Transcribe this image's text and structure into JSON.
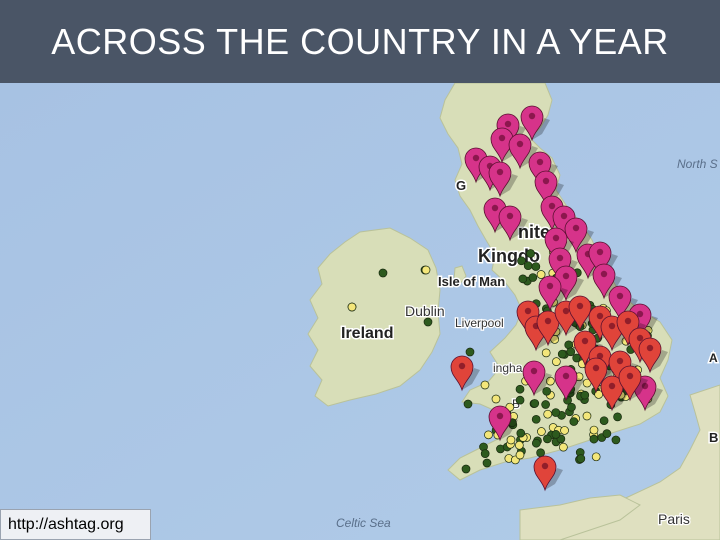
{
  "title": "ACROSS THE COUNTRY IN A YEAR",
  "source": "http://ashtag.org",
  "map": {
    "colors": {
      "sea": "#a9c4e4",
      "land": "#d9dfbc",
      "pin_magenta": "#d6338a",
      "pin_red": "#e0443a",
      "dot_green": "#2d5a1e",
      "dot_yellow": "#f3e67a"
    },
    "labels": {
      "north_sea": "North S",
      "united_kingdom_line1": "nite",
      "united_kingdom_line2": "Kingdo",
      "isle_of_man": "Isle of Man",
      "dublin": "Dublin",
      "ireland": "Ireland",
      "liverpool": "Liverpool",
      "birmingham": "ingha",
      "celtic_sea": "Celtic Sea",
      "paris": "Paris",
      "glasgow": "G",
      "b_label": "B",
      "a_label": "A",
      "bristol": "B"
    },
    "marker_types": [
      "magenta-pin",
      "red-pin",
      "green-dot",
      "yellow-dot"
    ]
  }
}
